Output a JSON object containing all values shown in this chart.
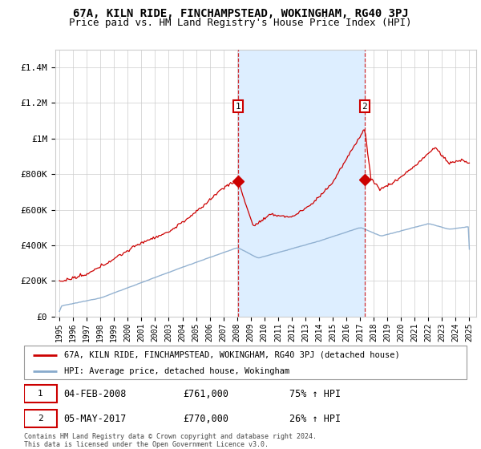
{
  "title": "67A, KILN RIDE, FINCHAMPSTEAD, WOKINGHAM, RG40 3PJ",
  "subtitle": "Price paid vs. HM Land Registry's House Price Index (HPI)",
  "ylim": [
    0,
    1500000
  ],
  "yticks": [
    0,
    200000,
    400000,
    600000,
    800000,
    1000000,
    1200000,
    1400000
  ],
  "ytick_labels": [
    "£0",
    "£200K",
    "£400K",
    "£600K",
    "£800K",
    "£1M",
    "£1.2M",
    "£1.4M"
  ],
  "xlim_start": 1994.7,
  "xlim_end": 2025.5,
  "xticks": [
    1995,
    1996,
    1997,
    1998,
    1999,
    2000,
    2001,
    2002,
    2003,
    2004,
    2005,
    2006,
    2007,
    2008,
    2009,
    2010,
    2011,
    2012,
    2013,
    2014,
    2015,
    2016,
    2017,
    2018,
    2019,
    2020,
    2021,
    2022,
    2023,
    2024,
    2025
  ],
  "sale1_x": 2008.08,
  "sale1_y": 761000,
  "sale1_label": "1",
  "sale1_date": "04-FEB-2008",
  "sale1_price": "£761,000",
  "sale1_hpi": "75% ↑ HPI",
  "sale2_x": 2017.34,
  "sale2_y": 770000,
  "sale2_label": "2",
  "sale2_date": "05-MAY-2017",
  "sale2_price": "£770,000",
  "sale2_hpi": "26% ↑ HPI",
  "line_color_red": "#cc0000",
  "line_color_blue": "#88aacc",
  "shaded_region_color": "#ddeeff",
  "grid_color": "#cccccc",
  "background_color": "#ffffff",
  "legend_line1": "67A, KILN RIDE, FINCHAMPSTEAD, WOKINGHAM, RG40 3PJ (detached house)",
  "legend_line2": "HPI: Average price, detached house, Wokingham",
  "footer": "Contains HM Land Registry data © Crown copyright and database right 2024.\nThis data is licensed under the Open Government Licence v3.0.",
  "title_fontsize": 10,
  "subtitle_fontsize": 9
}
